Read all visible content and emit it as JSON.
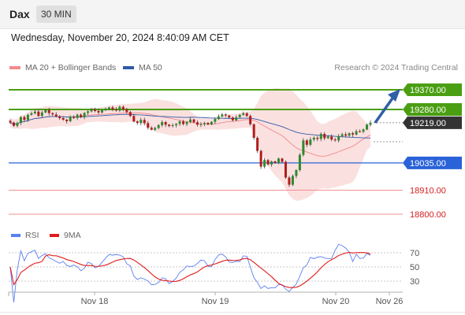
{
  "header": {
    "symbol": "Dax",
    "timeframe": "30 MIN",
    "datetime": "Wednesday, November 20, 2024 8:40:09 AM CET"
  },
  "legend": {
    "bollinger_label": "MA 20 + Bollinger Bands",
    "ma50_label": "MA 50",
    "credit": "Research © 2024 Trading Central"
  },
  "colors": {
    "green_level": "#4a9e12",
    "blue_level": "#2a62d8",
    "red_level": "#f09090",
    "current_tag": "#333333",
    "bollinger": "#f08a8a",
    "ma50": "#2f5aa8",
    "rsi": "#5b7ff0",
    "rsi_ma": "#e11b1b",
    "arrow": "#2f5fa6",
    "candle_up": "#2d8a2d",
    "candle_down": "#b01c1c"
  },
  "levels": [
    {
      "value": 19370.0,
      "label": "19370.00",
      "kind": "resistance"
    },
    {
      "value": 19280.0,
      "label": "19280.00",
      "kind": "resistance"
    },
    {
      "value": 19219.0,
      "label": "19219.00",
      "kind": "current"
    },
    {
      "value": 19035.0,
      "label": "19035.00",
      "kind": "support"
    },
    {
      "value": 18910.0,
      "label": "18910.00",
      "kind": "target"
    },
    {
      "value": 18800.0,
      "label": "18800.00",
      "kind": "target"
    }
  ],
  "x_labels": [
    "Nov 18",
    "Nov 19",
    "Nov 20",
    "Nov 26"
  ],
  "rsi": {
    "label": "RSI",
    "ma_label": "9MA",
    "ticks": [
      "70",
      "50",
      "30"
    ]
  },
  "chart_data": {
    "type": "candlestick",
    "x": [
      "Nov 18",
      "Nov 19",
      "Nov 20"
    ],
    "price_axis": [
      18800.0,
      18910.0,
      19035.0,
      19219.0,
      19280.0,
      19370.0
    ],
    "current_price": 19219.0,
    "resistance": [
      19280.0,
      19370.0
    ],
    "support": [
      19035.0,
      18910.0,
      18800.0
    ],
    "close_series": [
      19220,
      19205,
      19218,
      19245,
      19232,
      19255,
      19262,
      19270,
      19250,
      19266,
      19277,
      19263,
      19257,
      19248,
      19240,
      19233,
      19226,
      19247,
      19241,
      19256,
      19245,
      19264,
      19271,
      19280,
      19273,
      19266,
      19276,
      19283,
      19289,
      19280,
      19275,
      19292,
      19281,
      19268,
      19250,
      19225,
      19218,
      19232,
      19217,
      19196,
      19187,
      19195,
      19208,
      19222,
      19210,
      19204,
      19208,
      19214,
      19225,
      19213,
      19222,
      19234,
      19221,
      19210,
      19213,
      19218,
      19211,
      19223,
      19236,
      19248,
      19257,
      19252,
      19243,
      19230,
      19244,
      19255,
      19262,
      19250,
      19212,
      19150,
      19090,
      19018,
      19048,
      19028,
      19042,
      19035,
      19055,
      19040,
      18968,
      18935,
      18975,
      19002,
      19072,
      19138,
      19118,
      19142,
      19150,
      19145,
      19168,
      19148,
      19156,
      19142,
      19138,
      19158,
      19166,
      19160,
      19171,
      19165,
      19180,
      19178,
      19188,
      19210,
      19219
    ],
    "rsi_levels": [
      70,
      50,
      30
    ],
    "projection": {
      "from": 19219.0,
      "to": 19370.0,
      "direction": "up"
    }
  }
}
